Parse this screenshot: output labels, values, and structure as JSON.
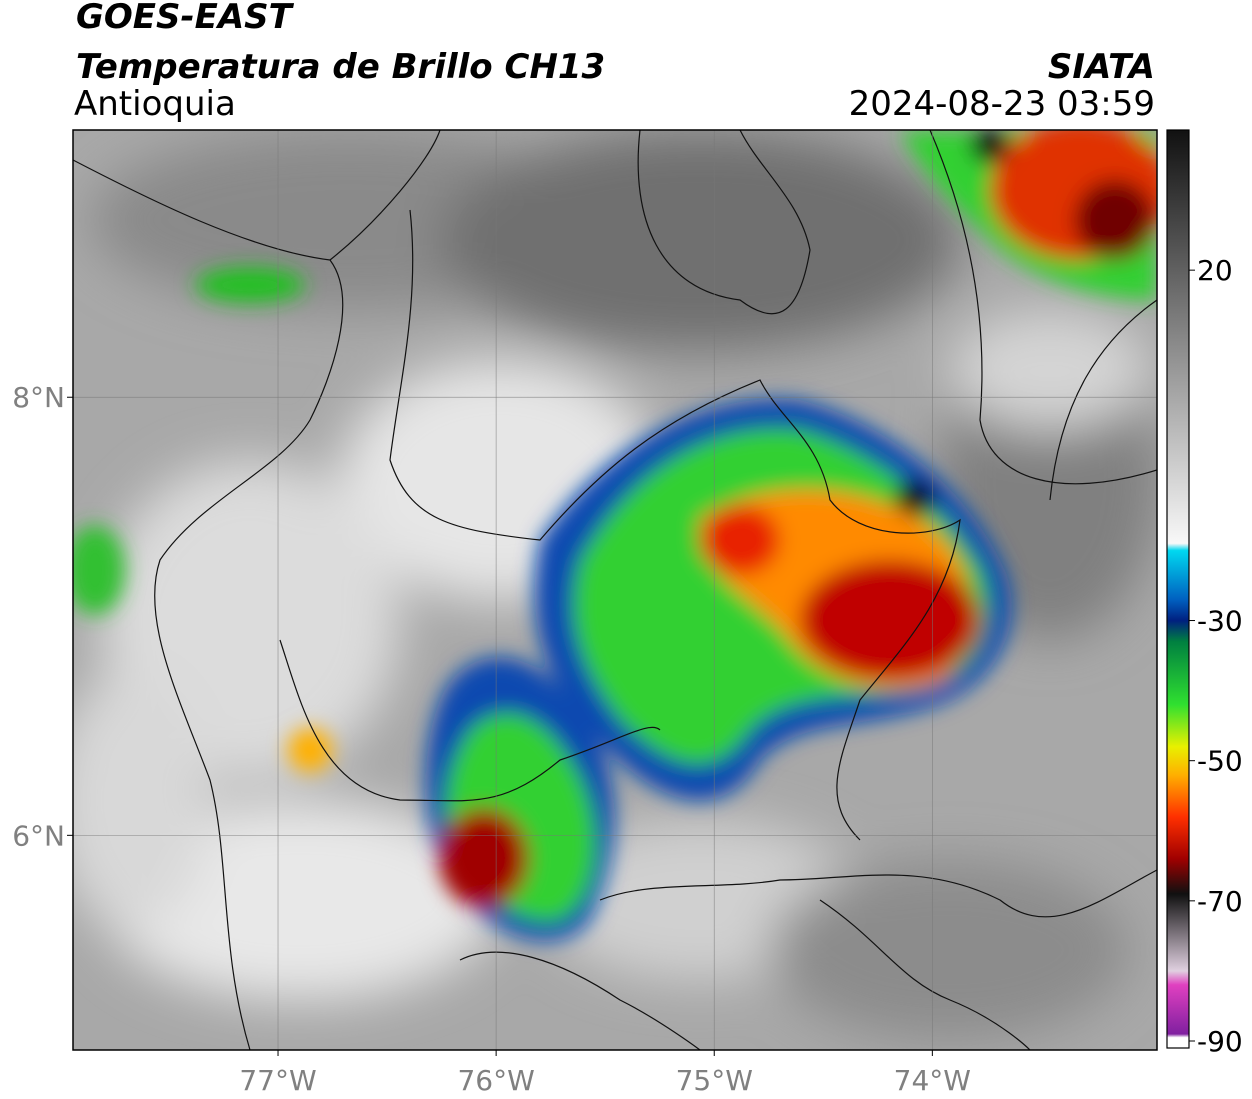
{
  "map": {
    "title": "GOES-EAST",
    "subtitle": "Temperatura de Brillo CH13",
    "region": "Antioquia",
    "source": "SIATA",
    "datetime": "2024-08-23 03:59",
    "xlim": [
      -77.94,
      -72.97
    ],
    "ylim": [
      5.02,
      9.22
    ],
    "xticks": [
      {
        "value": -77,
        "label": "77°W"
      },
      {
        "value": -76,
        "label": "76°W"
      },
      {
        "value": -75,
        "label": "75°W"
      },
      {
        "value": -74,
        "label": "74°W"
      }
    ],
    "yticks": [
      {
        "value": 8,
        "label": "8°N"
      },
      {
        "value": 6,
        "label": "6°N"
      }
    ],
    "grid": true,
    "colorbar": {
      "clim": [
        -91,
        40
      ],
      "ticks": [
        20,
        -30,
        -50,
        -70,
        -90
      ],
      "colormap": [
        {
          "value": 40,
          "color": "#111111"
        },
        {
          "value": 10,
          "color": "#888888"
        },
        {
          "value": -19,
          "color": "#f8f8f8"
        },
        {
          "value": -20,
          "color": "#00d8f0"
        },
        {
          "value": -27,
          "color": "#0060c0"
        },
        {
          "value": -30,
          "color": "#002080"
        },
        {
          "value": -33,
          "color": "#008040"
        },
        {
          "value": -42,
          "color": "#30e030"
        },
        {
          "value": -48,
          "color": "#e8f000"
        },
        {
          "value": -52,
          "color": "#ffb000"
        },
        {
          "value": -58,
          "color": "#ff3000"
        },
        {
          "value": -64,
          "color": "#a00000"
        },
        {
          "value": -69,
          "color": "#101010"
        },
        {
          "value": -80,
          "color": "#e0d0e0"
        },
        {
          "value": -82,
          "color": "#e040c0"
        },
        {
          "value": -89,
          "color": "#8020a0"
        },
        {
          "value": -89.5,
          "color": "#ffffff"
        },
        {
          "value": -91,
          "color": "#ffffff"
        }
      ]
    }
  }
}
